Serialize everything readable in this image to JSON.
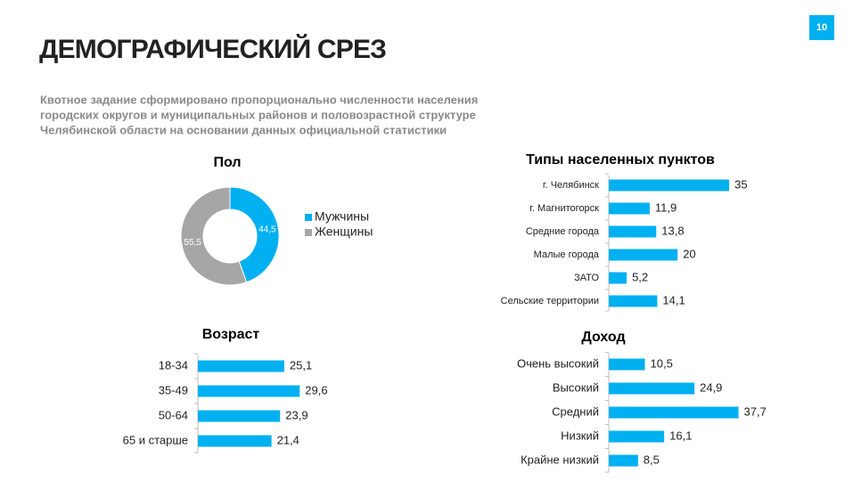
{
  "slide": {
    "title": "ДЕМОГРАФИЧЕСКИЙ СРЕЗ",
    "page_number": "10",
    "subtitle": [
      "Квотное задание сформировано пропорционально численности населения",
      "городских округов и муниципальных районов и половозрастной структуре",
      "Челябинской области на основании данных официальной статистики"
    ]
  },
  "chart_data": [
    {
      "type": "pie",
      "title": "Пол",
      "categories": [
        "Мужчины",
        "Женщины"
      ],
      "values": [
        44.5,
        55.5
      ],
      "value_labels": [
        "44,5",
        "55,5"
      ],
      "colors": [
        "#00b0f0",
        "#a6a6a6"
      ],
      "legend": "right"
    },
    {
      "type": "bar",
      "orientation": "horizontal",
      "title": "Типы населенных пунктов",
      "categories": [
        "г. Челябинск",
        "г. Магнитогорск",
        "Средние города",
        "Малые города",
        "ЗАТО",
        "Сельские территории"
      ],
      "values": [
        35,
        11.9,
        13.8,
        20,
        5.2,
        14.1
      ],
      "value_labels": [
        "35",
        "11,9",
        "13,8",
        "20",
        "5,2",
        "14,1"
      ],
      "color": "#00b0f0"
    },
    {
      "type": "bar",
      "orientation": "horizontal",
      "title": "Возраст",
      "categories": [
        "18-34",
        "35-49",
        "50-64",
        "65 и старше"
      ],
      "values": [
        25.1,
        29.6,
        23.9,
        21.4
      ],
      "value_labels": [
        "25,1",
        "29,6",
        "23,9",
        "21,4"
      ],
      "color": "#00b0f0"
    },
    {
      "type": "bar",
      "orientation": "horizontal",
      "title": "Доход",
      "categories": [
        "Очень высокий",
        "Высокий",
        "Средний",
        "Низкий",
        "Крайне низкий"
      ],
      "values": [
        10.5,
        24.9,
        37.7,
        16.1,
        8.5
      ],
      "value_labels": [
        "10,5",
        "24,9",
        "37,7",
        "16,1",
        "8,5"
      ],
      "color": "#00b0f0"
    }
  ]
}
